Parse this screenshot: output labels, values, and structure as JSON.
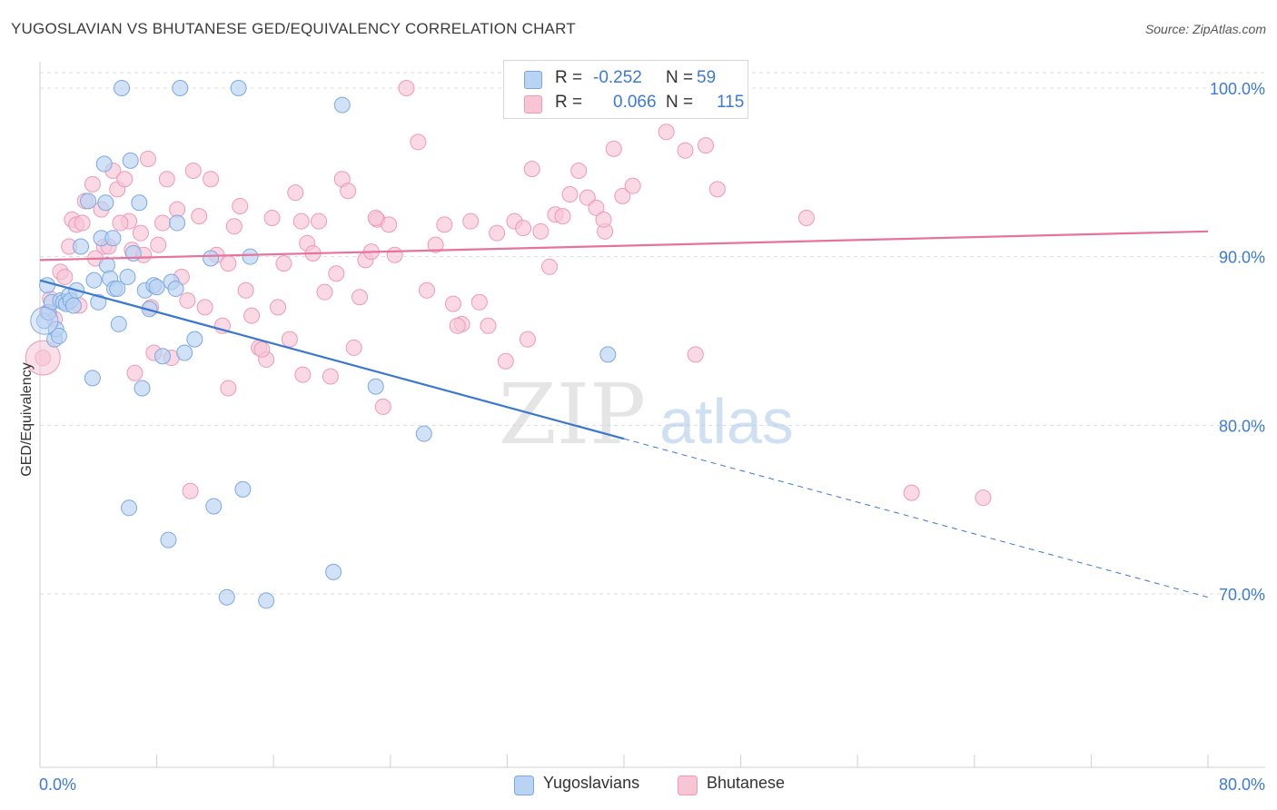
{
  "title": "YUGOSLAVIAN VS BHUTANESE GED/EQUIVALENCY CORRELATION CHART",
  "source": "Source: ZipAtlas.com",
  "watermark": {
    "zip": "ZIP",
    "atlas": "atlas"
  },
  "colors": {
    "blue_fill": "#b9d3f3",
    "blue_stroke": "#7ba8e4",
    "blue_line": "#3a78d0",
    "pink_fill": "#f8c5d5",
    "pink_stroke": "#ee9ab5",
    "pink_line": "#e8739a",
    "axis_text": "#3d7ad6",
    "grid": "#dddddd"
  },
  "legend": {
    "rows": [
      {
        "r_label": "R =",
        "r_value": "-0.252",
        "n_label": "N =",
        "n_value": "59"
      },
      {
        "r_label": "R =",
        "r_value": "0.066",
        "n_label": "N =",
        "n_value": "115"
      }
    ]
  },
  "bottom_legend": {
    "series1": "Yugoslavians",
    "series2": "Bhutanese"
  },
  "chart_data": {
    "type": "scatter",
    "xlabel": "",
    "ylabel": "GED/Equivalency",
    "xlim": [
      0,
      80
    ],
    "ylim": [
      60.5,
      101
    ],
    "x_tick_labels": [
      "0.0%",
      "80.0%"
    ],
    "y_ticks": [
      70,
      80,
      90,
      100
    ],
    "y_tick_labels": [
      "70.0%",
      "80.0%",
      "90.0%",
      "100.0%"
    ],
    "series": [
      {
        "name": "Yugoslavians",
        "r": -0.252,
        "n": 59,
        "trend": {
          "x0": 0,
          "y0": 88.6,
          "x1": 80,
          "y1": 69.8,
          "solid_until_x": 40
        },
        "points": [
          [
            0.3,
            86.2
          ],
          [
            0.5,
            88.3
          ],
          [
            0.6,
            86.7
          ],
          [
            0.8,
            87.3
          ],
          [
            1.0,
            85.1
          ],
          [
            1.1,
            85.7
          ],
          [
            1.3,
            85.3
          ],
          [
            1.4,
            87.4
          ],
          [
            1.6,
            87.3
          ],
          [
            1.8,
            87.2
          ],
          [
            2.0,
            87.7
          ],
          [
            2.1,
            87.4
          ],
          [
            2.3,
            87.1
          ],
          [
            2.5,
            88.0
          ],
          [
            2.8,
            90.6
          ],
          [
            3.3,
            93.3
          ],
          [
            3.6,
            82.8
          ],
          [
            3.7,
            88.6
          ],
          [
            4.0,
            87.3
          ],
          [
            4.2,
            91.1
          ],
          [
            4.4,
            95.5
          ],
          [
            4.6,
            89.5
          ],
          [
            4.8,
            88.7
          ],
          [
            5.0,
            91.1
          ],
          [
            5.1,
            88.1
          ],
          [
            5.3,
            88.1
          ],
          [
            5.4,
            86.0
          ],
          [
            5.6,
            100.0
          ],
          [
            6.0,
            88.8
          ],
          [
            6.2,
            95.7
          ],
          [
            6.4,
            90.2
          ],
          [
            6.8,
            93.2
          ],
          [
            7.0,
            82.2
          ],
          [
            7.2,
            88.0
          ],
          [
            7.5,
            86.9
          ],
          [
            7.8,
            88.3
          ],
          [
            8.0,
            88.2
          ],
          [
            8.4,
            84.1
          ],
          [
            9.0,
            88.5
          ],
          [
            9.4,
            92.0
          ],
          [
            9.6,
            100.0
          ],
          [
            9.9,
            84.3
          ],
          [
            10.6,
            85.1
          ],
          [
            11.7,
            89.9
          ],
          [
            13.6,
            100.0
          ],
          [
            14.4,
            90.0
          ],
          [
            20.7,
            99.0
          ],
          [
            23.0,
            82.3
          ],
          [
            26.3,
            79.5
          ],
          [
            38.9,
            84.2
          ],
          [
            6.1,
            75.1
          ],
          [
            8.8,
            73.2
          ],
          [
            11.9,
            75.2
          ],
          [
            12.8,
            69.8
          ],
          [
            13.9,
            76.2
          ],
          [
            15.5,
            69.6
          ],
          [
            20.1,
            71.3
          ],
          [
            4.5,
            93.2
          ],
          [
            9.3,
            88.1
          ]
        ]
      },
      {
        "name": "Bhutanese",
        "r": 0.066,
        "n": 115,
        "trend": {
          "x0": 0,
          "y0": 89.8,
          "x1": 80,
          "y1": 91.5
        },
        "points": [
          [
            0.2,
            84.0
          ],
          [
            0.5,
            86.7
          ],
          [
            0.7,
            87.5
          ],
          [
            1.0,
            86.3
          ],
          [
            1.4,
            89.1
          ],
          [
            1.7,
            88.8
          ],
          [
            2.0,
            90.6
          ],
          [
            2.2,
            92.2
          ],
          [
            2.5,
            91.9
          ],
          [
            2.9,
            92.0
          ],
          [
            3.1,
            93.3
          ],
          [
            3.6,
            94.3
          ],
          [
            3.8,
            89.9
          ],
          [
            4.2,
            92.8
          ],
          [
            4.4,
            90.6
          ],
          [
            4.7,
            90.6
          ],
          [
            5.0,
            95.1
          ],
          [
            5.3,
            94.0
          ],
          [
            5.8,
            94.6
          ],
          [
            6.1,
            92.1
          ],
          [
            6.3,
            90.4
          ],
          [
            6.5,
            83.1
          ],
          [
            6.9,
            91.4
          ],
          [
            7.1,
            90.1
          ],
          [
            7.4,
            95.8
          ],
          [
            7.8,
            84.3
          ],
          [
            8.1,
            90.7
          ],
          [
            8.4,
            92.0
          ],
          [
            8.7,
            94.6
          ],
          [
            9.0,
            84.0
          ],
          [
            9.4,
            92.8
          ],
          [
            9.7,
            88.8
          ],
          [
            10.1,
            87.4
          ],
          [
            10.5,
            95.1
          ],
          [
            10.9,
            92.4
          ],
          [
            11.3,
            87.0
          ],
          [
            11.7,
            94.6
          ],
          [
            12.1,
            90.1
          ],
          [
            12.5,
            85.9
          ],
          [
            12.9,
            89.6
          ],
          [
            13.3,
            91.8
          ],
          [
            13.7,
            93.0
          ],
          [
            14.1,
            88.0
          ],
          [
            14.5,
            86.5
          ],
          [
            15.0,
            84.6
          ],
          [
            15.5,
            83.9
          ],
          [
            15.9,
            92.3
          ],
          [
            16.3,
            87.0
          ],
          [
            16.7,
            89.6
          ],
          [
            17.1,
            85.1
          ],
          [
            17.5,
            93.8
          ],
          [
            17.9,
            92.1
          ],
          [
            18.3,
            90.8
          ],
          [
            18.7,
            90.2
          ],
          [
            19.1,
            92.1
          ],
          [
            19.5,
            87.9
          ],
          [
            19.9,
            82.9
          ],
          [
            20.3,
            89.0
          ],
          [
            20.7,
            94.6
          ],
          [
            21.1,
            93.9
          ],
          [
            21.5,
            84.6
          ],
          [
            21.9,
            87.6
          ],
          [
            22.3,
            89.8
          ],
          [
            22.7,
            90.3
          ],
          [
            23.1,
            92.2
          ],
          [
            23.5,
            81.1
          ],
          [
            23.9,
            91.9
          ],
          [
            24.3,
            90.1
          ],
          [
            25.1,
            100.0
          ],
          [
            25.9,
            96.8
          ],
          [
            26.5,
            88.0
          ],
          [
            27.1,
            90.7
          ],
          [
            27.7,
            91.9
          ],
          [
            28.3,
            87.2
          ],
          [
            28.9,
            86.0
          ],
          [
            29.5,
            92.1
          ],
          [
            30.1,
            87.3
          ],
          [
            30.7,
            85.9
          ],
          [
            31.3,
            91.4
          ],
          [
            31.9,
            83.8
          ],
          [
            32.5,
            92.1
          ],
          [
            33.1,
            91.7
          ],
          [
            33.7,
            95.2
          ],
          [
            34.3,
            91.5
          ],
          [
            34.9,
            89.4
          ],
          [
            35.3,
            92.5
          ],
          [
            35.8,
            92.4
          ],
          [
            36.3,
            93.7
          ],
          [
            36.9,
            95.1
          ],
          [
            37.5,
            93.5
          ],
          [
            38.1,
            92.9
          ],
          [
            38.7,
            91.5
          ],
          [
            39.3,
            96.4
          ],
          [
            39.9,
            93.6
          ],
          [
            40.6,
            94.2
          ],
          [
            42.9,
            97.4
          ],
          [
            43.6,
            100.0
          ],
          [
            44.2,
            96.3
          ],
          [
            44.9,
            84.2
          ],
          [
            45.6,
            96.6
          ],
          [
            46.4,
            94.0
          ],
          [
            52.5,
            92.3
          ],
          [
            59.7,
            76.0
          ],
          [
            64.6,
            75.7
          ],
          [
            15.2,
            84.5
          ],
          [
            10.3,
            76.1
          ],
          [
            7.6,
            87.0
          ],
          [
            5.5,
            92.0
          ],
          [
            12.9,
            82.2
          ],
          [
            28.6,
            85.9
          ],
          [
            2.7,
            87.1
          ],
          [
            33.4,
            85.1
          ],
          [
            38.6,
            92.2
          ],
          [
            23.0,
            92.3
          ],
          [
            18.0,
            83.0
          ]
        ]
      }
    ]
  }
}
